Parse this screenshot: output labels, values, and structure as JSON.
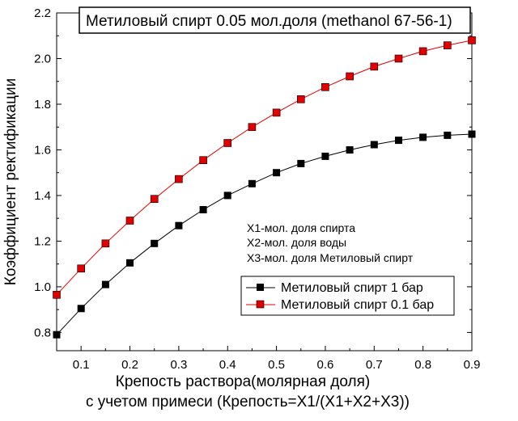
{
  "chart_data": {
    "type": "line",
    "title": "Метиловый спирт 0.05 мол.доля (methanol  67-56-1)",
    "ylabel": "Коэффициент ректификации",
    "xlabel_line1": "Крепость раствора(молярная доля)",
    "xlabel_line2": "с учетом примеси (Крепость=X1/(X1+X2+X3))",
    "xlim": [
      0.05,
      0.9
    ],
    "ylim": [
      0.72,
      2.2
    ],
    "xticks": [
      0.1,
      0.2,
      0.3,
      0.4,
      0.5,
      0.6,
      0.7,
      0.8,
      0.9
    ],
    "yticks": [
      0.8,
      1.0,
      1.2,
      1.4,
      1.6,
      1.8,
      2.0,
      2.2
    ],
    "xtick_labels": [
      "0.1",
      "0.2",
      "0.3",
      "0.4",
      "0.5",
      "0.6",
      "0.7",
      "0.8",
      "0.9"
    ],
    "ytick_labels": [
      "0.8",
      "1.0",
      "1.2",
      "1.4",
      "1.6",
      "1.8",
      "2.0",
      "2.2"
    ],
    "x": [
      0.05,
      0.1,
      0.15,
      0.2,
      0.25,
      0.3,
      0.35,
      0.4,
      0.45,
      0.5,
      0.55,
      0.6,
      0.65,
      0.7,
      0.75,
      0.8,
      0.85,
      0.9
    ],
    "series": [
      {
        "name": "Метиловый спирт 1 бар",
        "color": "#000000",
        "values": [
          0.79,
          0.905,
          1.01,
          1.105,
          1.19,
          1.268,
          1.338,
          1.4,
          1.452,
          1.5,
          1.54,
          1.572,
          1.6,
          1.623,
          1.642,
          1.655,
          1.664,
          1.669
        ]
      },
      {
        "name": "Метиловый спирт 0.1 бар",
        "color": "#e00000",
        "values": [
          0.965,
          1.08,
          1.19,
          1.29,
          1.385,
          1.472,
          1.555,
          1.63,
          1.7,
          1.763,
          1.822,
          1.875,
          1.922,
          1.965,
          2.0,
          2.032,
          2.058,
          2.08
        ]
      }
    ],
    "notes": [
      "X1-мол. доля спирта",
      "X2-мол. доля воды",
      "X3-мол. доля Метиловый спирт"
    ],
    "legend_position": "center-right"
  }
}
